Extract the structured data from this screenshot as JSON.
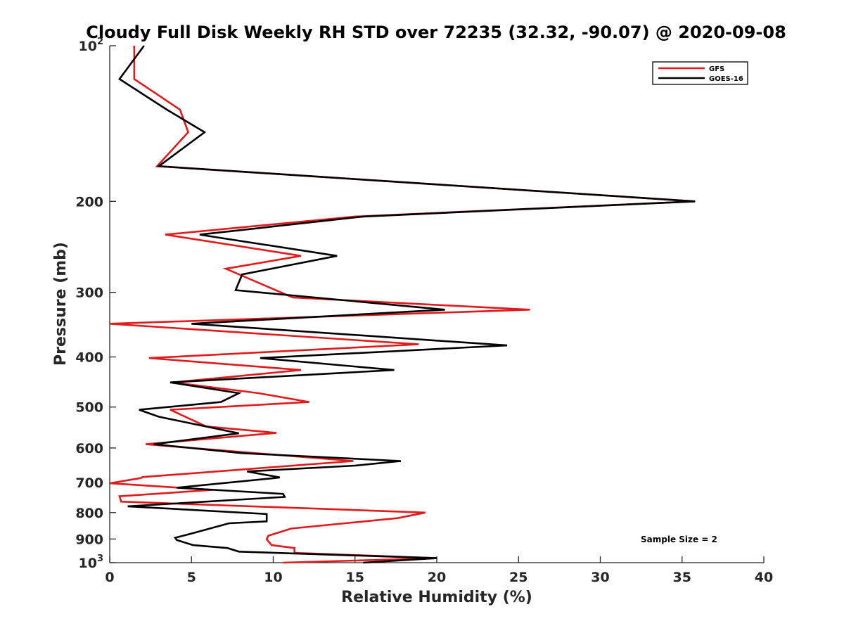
{
  "chart_data": {
    "type": "line",
    "title": "Cloudy Full Disk Weekly RH STD over 72235 (32.32, -90.07) @ 2020-09-08",
    "xlabel": "Relative Humidity (%)",
    "ylabel": "Pressure (mb)",
    "xlim": [
      0,
      40
    ],
    "ylim": [
      100,
      1000
    ],
    "yscale": "log",
    "y_reversed": true,
    "grid": false,
    "legend_position": "top-right",
    "x_ticks": [
      0,
      5,
      10,
      15,
      20,
      25,
      30,
      35,
      40
    ],
    "x_tick_labels": [
      "0",
      "5",
      "10",
      "15",
      "20",
      "25",
      "30",
      "35",
      "40"
    ],
    "y_ticks": [
      {
        "value": 100,
        "label": "10",
        "sup": "2"
      },
      {
        "value": 200,
        "label": "200",
        "sup": ""
      },
      {
        "value": 300,
        "label": "300",
        "sup": ""
      },
      {
        "value": 400,
        "label": "400",
        "sup": ""
      },
      {
        "value": 500,
        "label": "500",
        "sup": ""
      },
      {
        "value": 600,
        "label": "600",
        "sup": ""
      },
      {
        "value": 700,
        "label": "700",
        "sup": ""
      },
      {
        "value": 800,
        "label": "800",
        "sup": ""
      },
      {
        "value": 900,
        "label": "900",
        "sup": ""
      },
      {
        "value": 1000,
        "label": "10",
        "sup": "3"
      }
    ],
    "annotation": "Sample Size = 2",
    "series": [
      {
        "name": "GFS",
        "color": "#e31a1c",
        "points": [
          [
            1.5,
            100
          ],
          [
            1.5,
            116
          ],
          [
            4.3,
            133
          ],
          [
            4.8,
            147
          ],
          [
            2.9,
            171
          ],
          [
            35.8,
            200
          ],
          [
            15.0,
            214
          ],
          [
            3.4,
            232
          ],
          [
            11.7,
            255
          ],
          [
            7.1,
            270
          ],
          [
            11.2,
            307
          ],
          [
            25.7,
            324
          ],
          [
            0.0,
            345
          ],
          [
            18.9,
            378
          ],
          [
            2.4,
            402
          ],
          [
            11.7,
            424
          ],
          [
            3.9,
            448
          ],
          [
            9.1,
            470
          ],
          [
            12.2,
            489
          ],
          [
            3.7,
            506
          ],
          [
            5.9,
            545
          ],
          [
            10.2,
            561
          ],
          [
            2.2,
            590
          ],
          [
            14.9,
            636
          ],
          [
            2.0,
            683
          ],
          [
            1.9,
            686
          ],
          [
            0.0,
            702
          ],
          [
            6.3,
            723
          ],
          [
            0.6,
            744
          ],
          [
            0.7,
            762
          ],
          [
            19.3,
            800
          ],
          [
            17.6,
            820
          ],
          [
            11.1,
            859
          ],
          [
            9.7,
            887
          ],
          [
            9.6,
            901
          ],
          [
            9.9,
            925
          ],
          [
            11.3,
            937
          ],
          [
            11.3,
            957
          ],
          [
            20.0,
            980
          ],
          [
            10.6,
            1000
          ]
        ]
      },
      {
        "name": "GOES-16",
        "color": "#000000",
        "points": [
          [
            2.1,
            100
          ],
          [
            0.6,
            116
          ],
          [
            3.5,
            133
          ],
          [
            5.8,
            147
          ],
          [
            3.0,
            171
          ],
          [
            35.8,
            200
          ],
          [
            15.5,
            214
          ],
          [
            5.5,
            232
          ],
          [
            13.9,
            255
          ],
          [
            8.1,
            277
          ],
          [
            7.7,
            297
          ],
          [
            20.5,
            324
          ],
          [
            5.0,
            345
          ],
          [
            24.3,
            380
          ],
          [
            9.2,
            402
          ],
          [
            17.4,
            424
          ],
          [
            3.7,
            448
          ],
          [
            7.9,
            470
          ],
          [
            6.8,
            489
          ],
          [
            1.8,
            506
          ],
          [
            3.0,
            522
          ],
          [
            7.9,
            562
          ],
          [
            2.7,
            590
          ],
          [
            8.1,
            614
          ],
          [
            17.8,
            636
          ],
          [
            15.0,
            649
          ],
          [
            8.4,
            666
          ],
          [
            10.4,
            684
          ],
          [
            9.9,
            687
          ],
          [
            4.1,
            716
          ],
          [
            10.6,
            736
          ],
          [
            10.7,
            746
          ],
          [
            1.1,
            778
          ],
          [
            9.6,
            805
          ],
          [
            9.6,
            832
          ],
          [
            7.3,
            839
          ],
          [
            4.9,
            880
          ],
          [
            4.0,
            895
          ],
          [
            4.1,
            904
          ],
          [
            5.1,
            925
          ],
          [
            7.2,
            937
          ],
          [
            7.9,
            952
          ],
          [
            20.0,
            980
          ],
          [
            15.5,
            1000
          ]
        ]
      }
    ]
  }
}
